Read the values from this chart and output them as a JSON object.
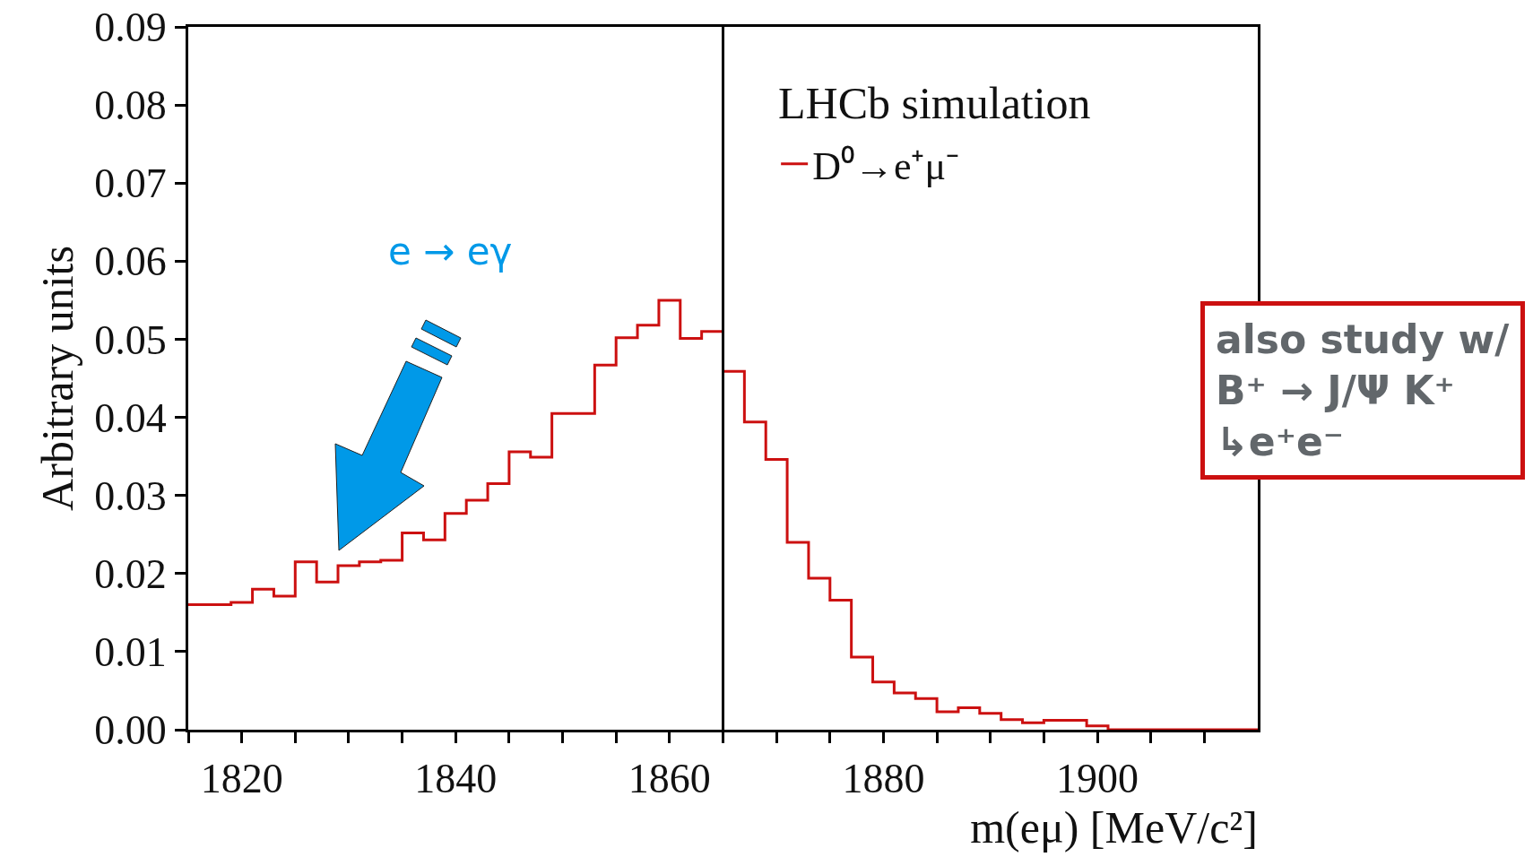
{
  "chart_data": {
    "type": "histogram",
    "xlabel": "m(eμ) [MeV/c²]",
    "ylabel": "Arbitrary units",
    "bins": [
      1815,
      1817,
      1819,
      1821,
      1823,
      1825,
      1827,
      1829,
      1831,
      1833,
      1835,
      1837,
      1839,
      1841,
      1843,
      1845,
      1847,
      1849,
      1851,
      1853,
      1855,
      1857,
      1859,
      1861,
      1863,
      1865,
      1867,
      1869,
      1871,
      1873,
      1875,
      1877,
      1879,
      1881,
      1883,
      1885,
      1887,
      1889,
      1891,
      1893,
      1895,
      1897,
      1899,
      1901,
      1903,
      1905,
      1907,
      1909,
      1911,
      1913,
      1915
    ],
    "series": [
      {
        "name": "D⁰→e⁺μ⁻",
        "color": "#cc1010",
        "values": [
          0.016,
          0.016,
          0.0163,
          0.018,
          0.0171,
          0.0215,
          0.0189,
          0.021,
          0.0215,
          0.0217,
          0.0252,
          0.0243,
          0.0277,
          0.0294,
          0.0315,
          0.0356,
          0.0349,
          0.0405,
          0.0405,
          0.0467,
          0.0502,
          0.0518,
          0.055,
          0.0501,
          0.051,
          0.0459,
          0.0394,
          0.0346,
          0.024,
          0.0194,
          0.0166,
          0.0093,
          0.0061,
          0.0047,
          0.004,
          0.0023,
          0.0028,
          0.0021,
          0.0013,
          0.0009,
          0.0012,
          0.0012,
          0.0005,
          0,
          0,
          0,
          0,
          0,
          0,
          0
        ]
      }
    ],
    "xlim": [
      1815,
      1915
    ],
    "xticks": [
      {
        "value": 1815,
        "label": null
      },
      1820,
      {
        "value": 1825,
        "label": null
      },
      {
        "value": 1830,
        "label": null
      },
      {
        "value": 1835,
        "label": null
      },
      1840,
      {
        "value": 1845,
        "label": null
      },
      {
        "value": 1850,
        "label": null
      },
      {
        "value": 1855,
        "label": null
      },
      1860,
      {
        "value": 1865,
        "label": null
      },
      {
        "value": 1870,
        "label": null
      },
      {
        "value": 1875,
        "label": null
      },
      1880,
      {
        "value": 1885,
        "label": null
      },
      {
        "value": 1890,
        "label": null
      },
      {
        "value": 1895,
        "label": null
      },
      1900,
      {
        "value": 1905,
        "label": null
      },
      {
        "value": 1910,
        "label": null
      }
    ],
    "ylim": [
      0,
      0.09
    ],
    "yticks": [
      {
        "value": 0,
        "label": "0.00"
      },
      0.01,
      0.02,
      0.03,
      0.04,
      0.05,
      0.06,
      0.07,
      0.08,
      0.09
    ],
    "ref_lines": [
      {
        "axis": "x",
        "value": 1865,
        "color": "#000000"
      }
    ],
    "annotations": [
      "LHCb simulation",
      "e → eγ",
      "also study w/\nB⁺ → J/Ψ K⁺\n↳e⁺e⁻"
    ],
    "legend": "top right",
    "grid": false
  }
}
